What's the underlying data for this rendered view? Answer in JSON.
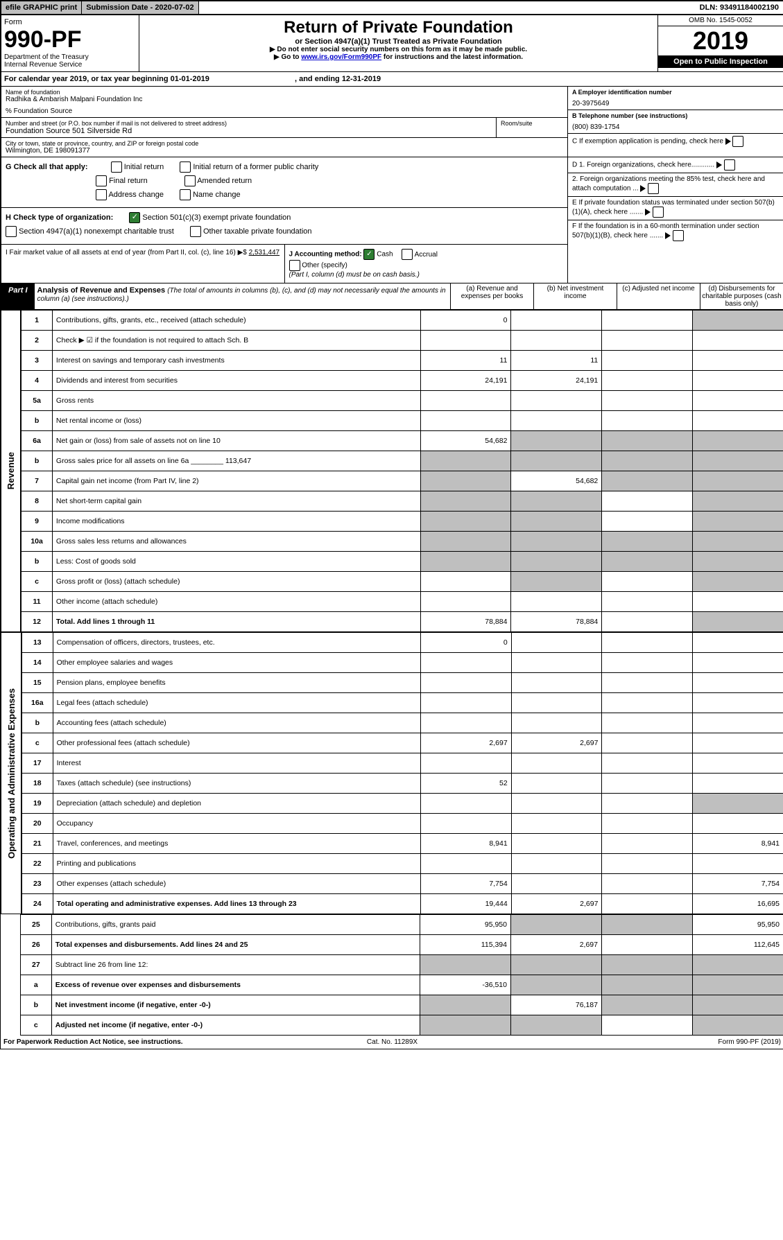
{
  "top": {
    "efile": "efile GRAPHIC print",
    "subdate_lbl": "Submission Date - 2020-07-02",
    "dln": "DLN: 93491184002190"
  },
  "header": {
    "form_lbl": "Form",
    "form_no": "990-PF",
    "dept": "Department of the Treasury",
    "irs": "Internal Revenue Service",
    "title": "Return of Private Foundation",
    "subtitle": "or Section 4947(a)(1) Trust Treated as Private Foundation",
    "note1": "▶ Do not enter social security numbers on this form as it may be made public.",
    "note2_pre": "▶ Go to ",
    "note2_link": "www.irs.gov/Form990PF",
    "note2_post": " for instructions and the latest information.",
    "omb": "OMB No. 1545-0052",
    "year": "2019",
    "open": "Open to Public Inspection"
  },
  "cal": {
    "text": "For calendar year 2019, or tax year beginning 01-01-2019",
    "end": ", and ending 12-31-2019"
  },
  "entity": {
    "name_lbl": "Name of foundation",
    "name": "Radhika & Ambarish Malpani Foundation Inc",
    "care": "% Foundation Source",
    "addr_lbl": "Number and street (or P.O. box number if mail is not delivered to street address)",
    "addr": "Foundation Source 501 Silverside Rd",
    "room_lbl": "Room/suite",
    "city_lbl": "City or town, state or province, country, and ZIP or foreign postal code",
    "city": "Wilmington, DE  198091377",
    "a_lbl": "A Employer identification number",
    "a_val": "20-3975649",
    "b_lbl": "B Telephone number (see instructions)",
    "b_val": "(800) 839-1754",
    "c_lbl": "C If exemption application is pending, check here",
    "d1": "D 1. Foreign organizations, check here............",
    "d2": "2. Foreign organizations meeting the 85% test, check here and attach computation ...",
    "e": "E  If private foundation status was terminated under section 507(b)(1)(A), check here .......",
    "f": "F  If the foundation is in a 60-month termination under section 507(b)(1)(B), check here ......."
  },
  "g": {
    "lbl": "G Check all that apply:",
    "o1": "Initial return",
    "o2": "Initial return of a former public charity",
    "o3": "Final return",
    "o4": "Amended return",
    "o5": "Address change",
    "o6": "Name change"
  },
  "h": {
    "lbl": "H Check type of organization:",
    "o1": "Section 501(c)(3) exempt private foundation",
    "o2": "Section 4947(a)(1) nonexempt charitable trust",
    "o3": "Other taxable private foundation"
  },
  "i": {
    "lbl": "I Fair market value of all assets at end of year (from Part II, col. (c), line 16) ▶$",
    "val": "2,531,447"
  },
  "j": {
    "lbl": "J Accounting method:",
    "cash": "Cash",
    "accrual": "Accrual",
    "other": "Other (specify)",
    "note": "(Part I, column (d) must be on cash basis.)"
  },
  "part1": {
    "tag": "Part I",
    "title": "Analysis of Revenue and Expenses",
    "note": "(The total of amounts in columns (b), (c), and (d) may not necessarily equal the amounts in column (a) (see instructions).)",
    "col_a": "(a)   Revenue and expenses per books",
    "col_b": "(b)  Net investment income",
    "col_c": "(c)  Adjusted net income",
    "col_d": "(d)  Disbursements for charitable purposes (cash basis only)"
  },
  "side": {
    "rev": "Revenue",
    "exp": "Operating and Administrative Expenses"
  },
  "rows": [
    {
      "n": "1",
      "d": "Contributions, gifts, grants, etc., received (attach schedule)",
      "a": "0",
      "b": "",
      "c": "",
      "dd": "",
      "dgrey": true
    },
    {
      "n": "2",
      "d": "Check ▶ ☑ if the foundation is not required to attach Sch. B",
      "leader": true
    },
    {
      "n": "3",
      "d": "Interest on savings and temporary cash investments",
      "a": "11",
      "b": "11"
    },
    {
      "n": "4",
      "d": "Dividends and interest from securities",
      "a": "24,191",
      "b": "24,191"
    },
    {
      "n": "5a",
      "d": "Gross rents"
    },
    {
      "n": "b",
      "d": "Net rental income or (loss)"
    },
    {
      "n": "6a",
      "d": "Net gain or (loss) from sale of assets not on line 10",
      "a": "54,682",
      "bgrey": true,
      "cgrey": true,
      "dgrey": true
    },
    {
      "n": "b",
      "d": "Gross sales price for all assets on line 6a",
      "inline": "113,647",
      "agrey": true,
      "bgrey": true,
      "cgrey": true,
      "dgrey": true
    },
    {
      "n": "7",
      "d": "Capital gain net income (from Part IV, line 2)",
      "b": "54,682",
      "agrey": true,
      "cgrey": true,
      "dgrey": true
    },
    {
      "n": "8",
      "d": "Net short-term capital gain",
      "agrey": true,
      "bgrey": true,
      "dgrey": true
    },
    {
      "n": "9",
      "d": "Income modifications",
      "agrey": true,
      "bgrey": true,
      "dgrey": true
    },
    {
      "n": "10a",
      "d": "Gross sales less returns and allowances",
      "agrey": true,
      "bgrey": true,
      "cgrey": true,
      "dgrey": true
    },
    {
      "n": "b",
      "d": "Less: Cost of goods sold",
      "agrey": true,
      "bgrey": true,
      "cgrey": true,
      "dgrey": true
    },
    {
      "n": "c",
      "d": "Gross profit or (loss) (attach schedule)",
      "bgrey": true,
      "dgrey": true
    },
    {
      "n": "11",
      "d": "Other income (attach schedule)"
    },
    {
      "n": "12",
      "d": "Total. Add lines 1 through 11",
      "bold": true,
      "a": "78,884",
      "b": "78,884",
      "dgrey": true
    },
    {
      "n": "13",
      "d": "Compensation of officers, directors, trustees, etc.",
      "a": "0"
    },
    {
      "n": "14",
      "d": "Other employee salaries and wages"
    },
    {
      "n": "15",
      "d": "Pension plans, employee benefits"
    },
    {
      "n": "16a",
      "d": "Legal fees (attach schedule)"
    },
    {
      "n": "b",
      "d": "Accounting fees (attach schedule)"
    },
    {
      "n": "c",
      "d": "Other professional fees (attach schedule)",
      "a": "2,697",
      "b": "2,697"
    },
    {
      "n": "17",
      "d": "Interest"
    },
    {
      "n": "18",
      "d": "Taxes (attach schedule) (see instructions)",
      "a": "52"
    },
    {
      "n": "19",
      "d": "Depreciation (attach schedule) and depletion",
      "dgrey": true
    },
    {
      "n": "20",
      "d": "Occupancy"
    },
    {
      "n": "21",
      "d": "Travel, conferences, and meetings",
      "a": "8,941",
      "dd": "8,941"
    },
    {
      "n": "22",
      "d": "Printing and publications"
    },
    {
      "n": "23",
      "d": "Other expenses (attach schedule)",
      "a": "7,754",
      "dd": "7,754"
    },
    {
      "n": "24",
      "d": "Total operating and administrative expenses. Add lines 13 through 23",
      "bold": true,
      "a": "19,444",
      "b": "2,697",
      "dd": "16,695"
    },
    {
      "n": "25",
      "d": "Contributions, gifts, grants paid",
      "a": "95,950",
      "bgrey": true,
      "cgrey": true,
      "dd": "95,950"
    },
    {
      "n": "26",
      "d": "Total expenses and disbursements. Add lines 24 and 25",
      "bold": true,
      "a": "115,394",
      "b": "2,697",
      "dd": "112,645"
    },
    {
      "n": "27",
      "d": "Subtract line 26 from line 12:",
      "agrey": true,
      "bgrey": true,
      "cgrey": true,
      "dgrey": true
    },
    {
      "n": "a",
      "d": "Excess of revenue over expenses and disbursements",
      "bold": true,
      "a": "-36,510",
      "bgrey": true,
      "cgrey": true,
      "dgrey": true
    },
    {
      "n": "b",
      "d": "Net investment income (if negative, enter -0-)",
      "bold": true,
      "b": "76,187",
      "agrey": true,
      "cgrey": true,
      "dgrey": true
    },
    {
      "n": "c",
      "d": "Adjusted net income (if negative, enter -0-)",
      "bold": true,
      "agrey": true,
      "bgrey": true,
      "dgrey": true
    }
  ],
  "footer": {
    "left": "For Paperwork Reduction Act Notice, see instructions.",
    "mid": "Cat. No. 11289X",
    "right": "Form 990-PF (2019)"
  }
}
